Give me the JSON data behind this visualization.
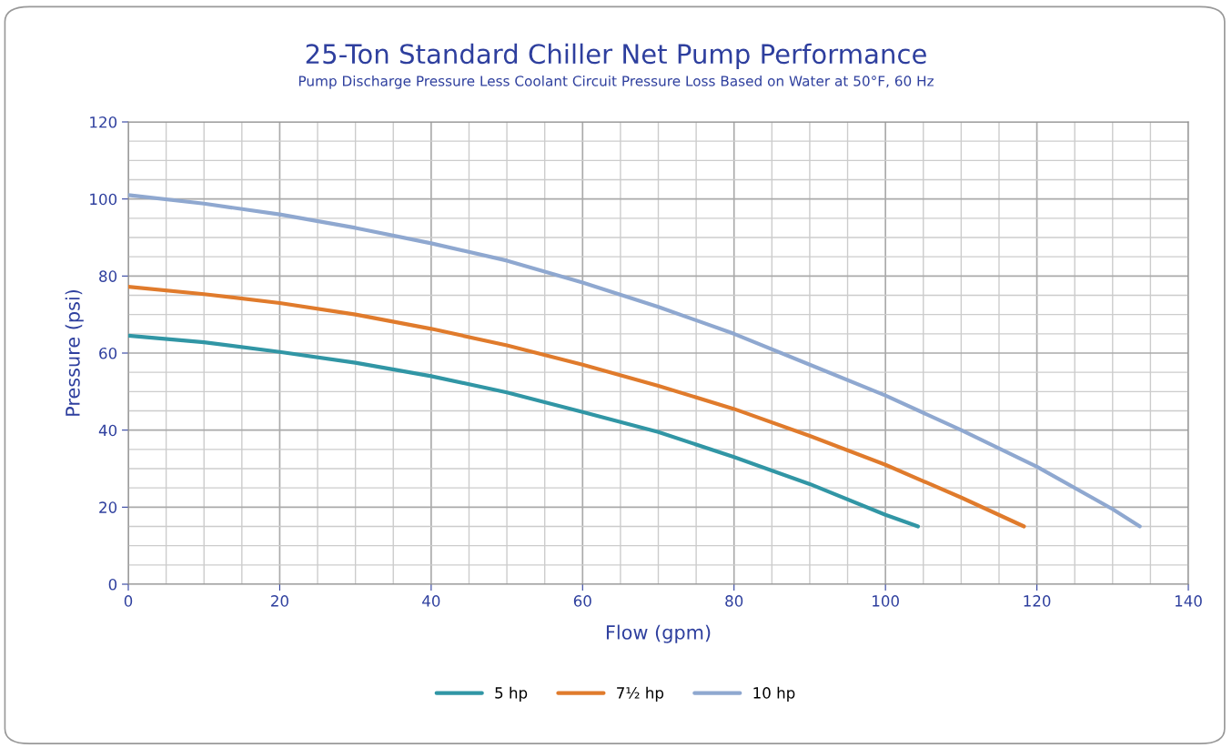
{
  "chart_data": {
    "type": "line",
    "title": "25-Ton Standard Chiller Net Pump Performance",
    "subtitle": "Pump Discharge Pressure Less Coolant Circuit Pressure Loss Based on Water at 50°F, 60 Hz",
    "xlabel": "Flow (gpm)",
    "ylabel": "Pressure (psi)",
    "xlim": [
      0,
      140
    ],
    "xticks": [
      0,
      20,
      40,
      60,
      80,
      100,
      120,
      140
    ],
    "ylim": [
      0,
      120
    ],
    "yticks": [
      0,
      20,
      40,
      60,
      80,
      100,
      120
    ],
    "grid": true,
    "legend": "bottom",
    "marker": "none",
    "line_style": "solid",
    "series": [
      {
        "name": "5 hp",
        "color": "#3196a5",
        "x": [
          0,
          10,
          20,
          30,
          40,
          50,
          60,
          70,
          80,
          90,
          100,
          104.3
        ],
        "values": [
          64.5,
          62.8,
          60.3,
          57.5,
          54,
          49.8,
          44.7,
          39.5,
          33,
          26,
          18,
          15
        ]
      },
      {
        "name": "7½ hp",
        "color": "#e07b2c",
        "x": [
          0,
          10,
          20,
          30,
          40,
          50,
          60,
          70,
          80,
          90,
          100,
          110,
          118.3
        ],
        "values": [
          77.2,
          75.3,
          73,
          70,
          66.3,
          62,
          57,
          51.5,
          45.5,
          38.5,
          31,
          22.5,
          15
        ]
      },
      {
        "name": "10 hp",
        "color": "#8fa8d0",
        "x": [
          0,
          10,
          20,
          30,
          40,
          50,
          60,
          70,
          80,
          90,
          100,
          110,
          120,
          130,
          133.6
        ],
        "values": [
          101,
          98.8,
          96,
          92.5,
          88.5,
          84,
          78.3,
          72,
          65,
          57,
          49,
          40,
          30.5,
          19.5,
          15
        ]
      }
    ]
  }
}
